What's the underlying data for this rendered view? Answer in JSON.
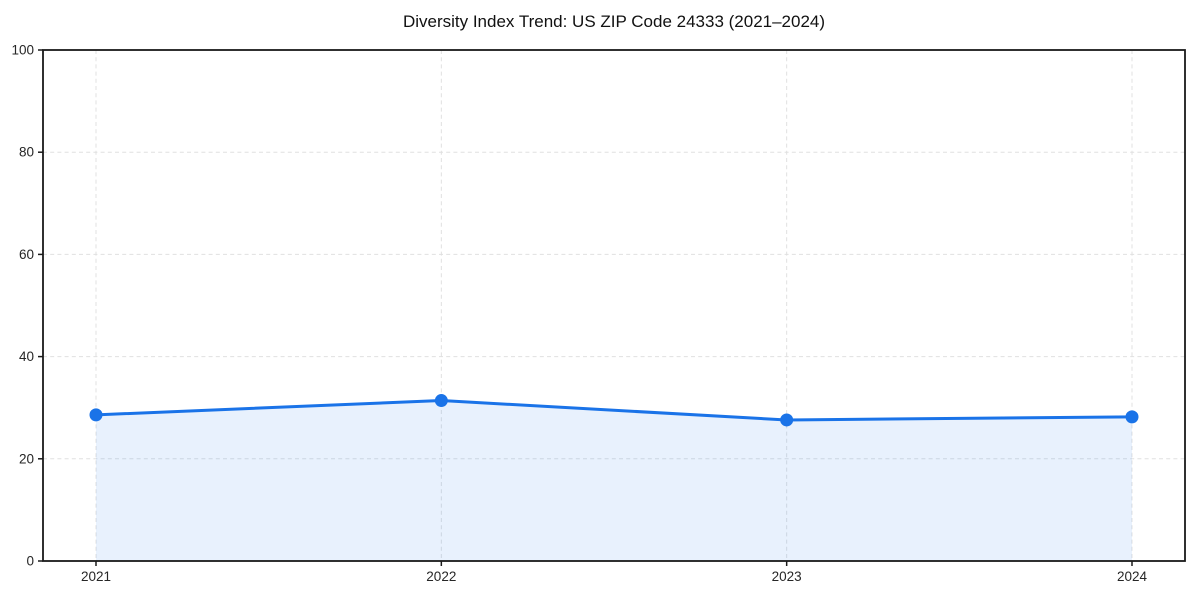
{
  "chart_data": {
    "type": "line",
    "title": "Diversity Index Trend: US ZIP Code 24333 (2021–2024)",
    "x": [
      "2021",
      "2022",
      "2023",
      "2024"
    ],
    "values": [
      28.6,
      31.4,
      27.6,
      28.2
    ],
    "series_name": "Diversity Index",
    "xlabel": "",
    "ylabel": "",
    "ylim": [
      0,
      100
    ],
    "yticks": [
      0,
      20,
      40,
      60,
      80,
      100
    ],
    "grid": true,
    "grid_style": "dashed",
    "legend_position": "none",
    "area_fill": true,
    "marker": "circle",
    "colors": {
      "line": "#1a73e8",
      "marker": "#1a73e8",
      "fill": "rgba(26,115,232,0.10)",
      "grid": "#e0e0e0",
      "spine": "#1a1a1a",
      "tick": "#1a1a1a",
      "tick_label": "#262626",
      "title": "#111111",
      "background": "#ffffff"
    }
  }
}
